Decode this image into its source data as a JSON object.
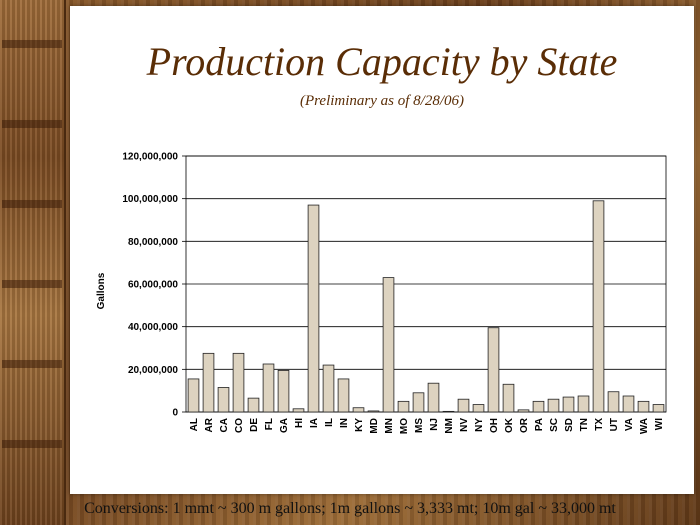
{
  "header": {
    "title": "Production Capacity by State",
    "subtitle": "(Preliminary as of 8/28/06)"
  },
  "footer": {
    "text": "Conversions:  1 mmt ~  300 m gallons; 1m gallons ~ 3,333 mt; 10m gal ~ 33,000 mt"
  },
  "colors": {
    "bar_fill": "#ddd3c0",
    "bar_stroke": "#222222",
    "title": "#5a2d06"
  },
  "chart_data": {
    "type": "bar",
    "title": "Production Capacity by State",
    "subtitle": "(Preliminary as of 8/28/06)",
    "xlabel": "",
    "ylabel": "Gallons",
    "ylim": [
      0,
      120000000
    ],
    "yticks": [
      0,
      20000000,
      40000000,
      60000000,
      80000000,
      100000000,
      120000000
    ],
    "ytick_labels": [
      "0",
      "20,000,000",
      "40,000,000",
      "60,000,000",
      "80,000,000",
      "100,000,000",
      "120,000,000"
    ],
    "grid": true,
    "legend": "none",
    "categories": [
      "AL",
      "AR",
      "CA",
      "CO",
      "DE",
      "FL",
      "GA",
      "HI",
      "IA",
      "IL",
      "IN",
      "KY",
      "MD",
      "MN",
      "MO",
      "MS",
      "NJ",
      "NM",
      "NV",
      "NY",
      "OH",
      "OK",
      "OR",
      "PA",
      "SC",
      "SD",
      "TN",
      "TX",
      "UT",
      "VA",
      "WA",
      "WI"
    ],
    "values": [
      15500000,
      27500000,
      11500000,
      27500000,
      6500000,
      22500000,
      19500000,
      1500000,
      97000000,
      22000000,
      15500000,
      2000000,
      500000,
      63000000,
      5000000,
      9000000,
      13500000,
      300000,
      6000000,
      3500000,
      39500000,
      13000000,
      1000000,
      5000000,
      6000000,
      7000000,
      7500000,
      99000000,
      9500000,
      7500000,
      5000000,
      3500000
    ]
  }
}
